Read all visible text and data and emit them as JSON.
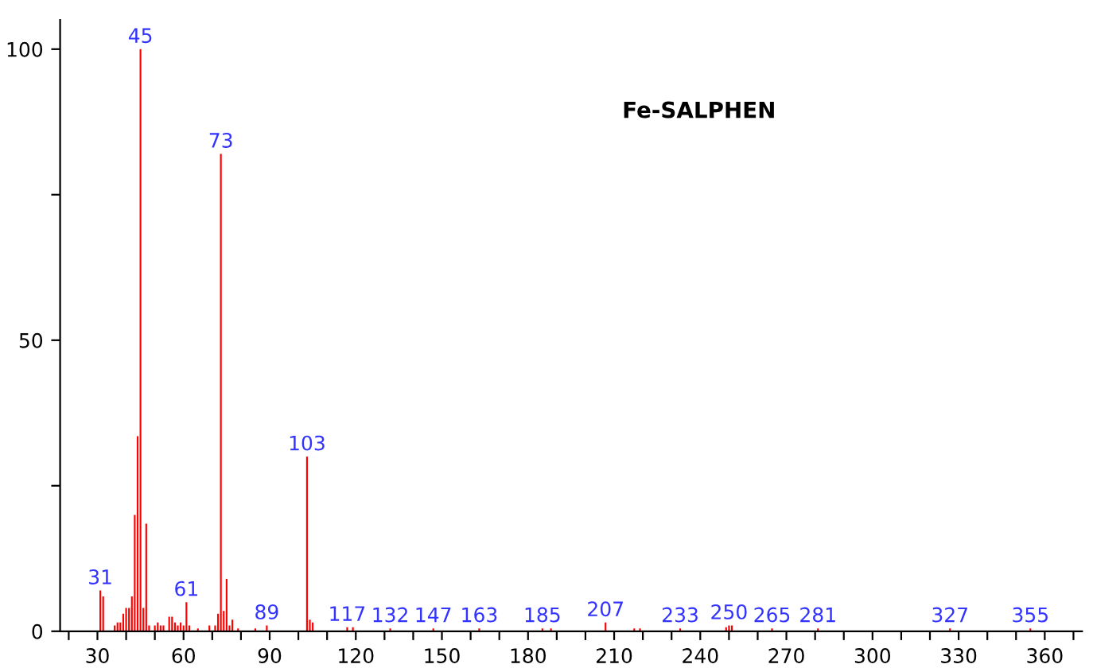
{
  "chart_data": {
    "type": "bar",
    "title": "Fe-SALPHEN",
    "color": "#ff0000",
    "x": [
      31,
      32,
      36,
      37,
      38,
      39,
      40,
      41,
      42,
      43,
      44,
      45,
      46,
      47,
      48,
      50,
      51,
      52,
      53,
      55,
      56,
      57,
      58,
      59,
      60,
      61,
      62,
      65,
      69,
      71,
      72,
      73,
      74,
      75,
      76,
      77,
      79,
      85,
      89,
      103,
      104,
      105,
      117,
      119,
      132,
      147,
      163,
      185,
      188,
      207,
      217,
      219,
      233,
      249,
      250,
      251,
      265,
      281,
      327,
      355
    ],
    "values": [
      7,
      6,
      1,
      1.5,
      1.5,
      3,
      4,
      4,
      6,
      20,
      33.5,
      100,
      4,
      18.5,
      1,
      1,
      1.5,
      1,
      1,
      2.5,
      2.5,
      1.5,
      1,
      1.5,
      1,
      5,
      1,
      0.5,
      1,
      1,
      3,
      82,
      3.5,
      9,
      1,
      2,
      0.5,
      0.5,
      1,
      30,
      2,
      1.5,
      0.7,
      0.7,
      0.5,
      0.5,
      0.5,
      0.5,
      0.5,
      1.5,
      0.5,
      0.5,
      0.5,
      0.7,
      1,
      1,
      0.5,
      0.5,
      0.5,
      0.5
    ],
    "annotations": [
      {
        "text": "31",
        "x": 31,
        "y": 7
      },
      {
        "text": "45",
        "x": 45,
        "y": 100
      },
      {
        "text": "61",
        "x": 61,
        "y": 5
      },
      {
        "text": "73",
        "x": 73,
        "y": 82
      },
      {
        "text": "89",
        "x": 89,
        "y": 1
      },
      {
        "text": "103",
        "x": 103,
        "y": 30
      },
      {
        "text": "117",
        "x": 117,
        "y": 0.7
      },
      {
        "text": "132",
        "x": 132,
        "y": 0.5
      },
      {
        "text": "147",
        "x": 147,
        "y": 0.5
      },
      {
        "text": "163",
        "x": 163,
        "y": 0.5
      },
      {
        "text": "185",
        "x": 185,
        "y": 0.5
      },
      {
        "text": "207",
        "x": 207,
        "y": 1.5
      },
      {
        "text": "233",
        "x": 233,
        "y": 0.5
      },
      {
        "text": "250",
        "x": 250,
        "y": 1
      },
      {
        "text": "265",
        "x": 265,
        "y": 0.5
      },
      {
        "text": "281",
        "x": 281,
        "y": 0.5
      },
      {
        "text": "327",
        "x": 327,
        "y": 0.5
      },
      {
        "text": "355",
        "x": 355,
        "y": 0.5
      }
    ],
    "xlim": [
      17,
      373
    ],
    "ylim": [
      0,
      105
    ],
    "xticks": [
      {
        "value": 20,
        "label": null
      },
      30,
      {
        "value": 40,
        "label": null
      },
      {
        "value": 50,
        "label": null
      },
      60,
      {
        "value": 70,
        "label": null
      },
      {
        "value": 80,
        "label": null
      },
      90,
      {
        "value": 100,
        "label": null
      },
      {
        "value": 110,
        "label": null
      },
      120,
      {
        "value": 130,
        "label": null
      },
      {
        "value": 140,
        "label": null
      },
      150,
      {
        "value": 160,
        "label": null
      },
      {
        "value": 170,
        "label": null
      },
      180,
      {
        "value": 190,
        "label": null
      },
      {
        "value": 200,
        "label": null
      },
      210,
      {
        "value": 220,
        "label": null
      },
      {
        "value": 230,
        "label": null
      },
      240,
      {
        "value": 250,
        "label": null
      },
      {
        "value": 260,
        "label": null
      },
      270,
      {
        "value": 280,
        "label": null
      },
      {
        "value": 290,
        "label": null
      },
      300,
      {
        "value": 310,
        "label": null
      },
      {
        "value": 320,
        "label": null
      },
      330,
      {
        "value": 340,
        "label": null
      },
      {
        "value": 350,
        "label": null
      },
      360,
      {
        "value": 370,
        "label": null
      }
    ],
    "yticks": [
      0,
      {
        "value": 25,
        "label": null
      },
      50,
      {
        "value": 75,
        "label": null
      },
      100
    ],
    "grid": false
  }
}
